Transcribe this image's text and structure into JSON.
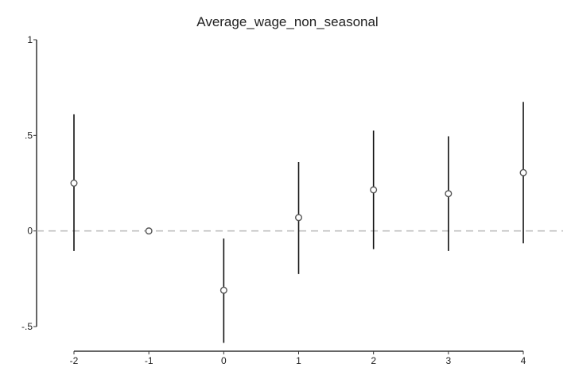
{
  "chart_data": {
    "type": "scatter",
    "title": "Average_wage_non_seasonal",
    "xlabel": "",
    "ylabel": "",
    "x": [
      -2,
      -1,
      0,
      1,
      2,
      3,
      4
    ],
    "series": [
      {
        "estimate": [
          0.25,
          0.0,
          -0.31,
          0.07,
          0.215,
          0.195,
          0.305
        ],
        "ci_lower": [
          -0.105,
          0.0,
          -0.585,
          -0.225,
          -0.095,
          -0.105,
          -0.065
        ],
        "ci_upper": [
          0.61,
          0.0,
          -0.04,
          0.36,
          0.525,
          0.495,
          0.675
        ]
      }
    ],
    "xticks": [
      -2,
      -1,
      0,
      1,
      2,
      3,
      4
    ],
    "xtick_labels": [
      "-2",
      "-1",
      "0",
      "1",
      "2",
      "3",
      "4"
    ],
    "yticks": [
      1,
      0.5,
      0,
      -0.5
    ],
    "ytick_labels": [
      "1",
      ".5",
      "0",
      "-.5"
    ],
    "ylim": [
      -0.5,
      1
    ],
    "xlim": [
      -2,
      4
    ],
    "reference_line": {
      "y": 0,
      "style": "dashed"
    },
    "grid": false,
    "colors": {
      "marker": "#555555",
      "ci": "#111111",
      "reference": "#b8b8b8",
      "axis": "#333333"
    }
  }
}
